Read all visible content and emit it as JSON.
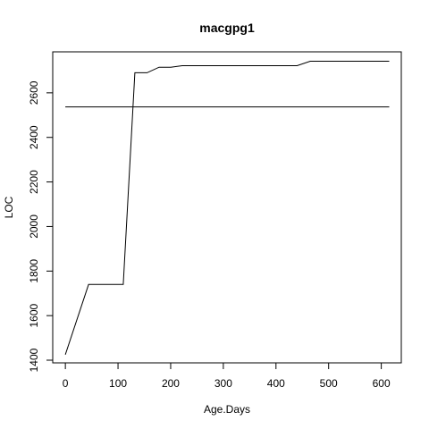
{
  "chart_data": {
    "type": "line",
    "title": "macgpg1",
    "xlabel": "Age.Days",
    "ylabel": "LOC",
    "xlim": [
      -24,
      638
    ],
    "ylim": [
      1388,
      2784
    ],
    "x_ticks": [
      0,
      100,
      200,
      300,
      400,
      500,
      600
    ],
    "y_ticks": [
      1400,
      1600,
      1800,
      2000,
      2200,
      2400,
      2600
    ],
    "grid": false,
    "series": [
      {
        "type": "step-line",
        "x": [
          0,
          44,
          110,
          132,
          155,
          178,
          200,
          222,
          245,
          300,
          350,
          440,
          465,
          500,
          560,
          615
        ],
        "y": [
          1425,
          1740,
          1740,
          2690,
          2690,
          2715,
          2715,
          2722,
          2722,
          2722,
          2722,
          2722,
          2742,
          2742,
          2742,
          2742
        ]
      },
      {
        "type": "hline",
        "x": [
          0,
          615
        ],
        "y": [
          2537,
          2537
        ]
      }
    ]
  }
}
